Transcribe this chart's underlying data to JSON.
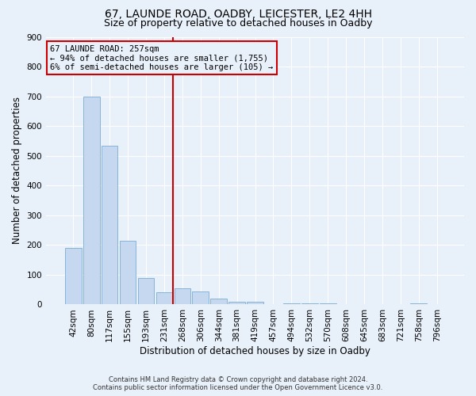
{
  "title": "67, LAUNDE ROAD, OADBY, LEICESTER, LE2 4HH",
  "subtitle": "Size of property relative to detached houses in Oadby",
  "xlabel": "Distribution of detached houses by size in Oadby",
  "ylabel": "Number of detached properties",
  "footer_line1": "Contains HM Land Registry data © Crown copyright and database right 2024.",
  "footer_line2": "Contains public sector information licensed under the Open Government Licence v3.0.",
  "bar_labels": [
    "42sqm",
    "80sqm",
    "117sqm",
    "155sqm",
    "193sqm",
    "231sqm",
    "268sqm",
    "306sqm",
    "344sqm",
    "381sqm",
    "419sqm",
    "457sqm",
    "494sqm",
    "532sqm",
    "570sqm",
    "608sqm",
    "645sqm",
    "683sqm",
    "721sqm",
    "758sqm",
    "796sqm"
  ],
  "bar_values": [
    190,
    700,
    535,
    215,
    90,
    40,
    55,
    45,
    20,
    10,
    10,
    0,
    5,
    3,
    3,
    0,
    0,
    0,
    0,
    5,
    0
  ],
  "bar_color": "#c5d8f0",
  "bar_edge_color": "#7aadd4",
  "annotation_text": "67 LAUNDE ROAD: 257sqm\n← 94% of detached houses are smaller (1,755)\n6% of semi-detached houses are larger (105) →",
  "vline_x": 5.5,
  "vline_color": "#cc0000",
  "annotation_box_color": "#cc0000",
  "ylim": [
    0,
    900
  ],
  "yticks": [
    0,
    100,
    200,
    300,
    400,
    500,
    600,
    700,
    800,
    900
  ],
  "background_color": "#e8f0fa",
  "grid_color": "#ffffff",
  "title_fontsize": 10,
  "subtitle_fontsize": 9,
  "axis_label_fontsize": 8.5,
  "tick_fontsize": 7.5,
  "annotation_fontsize": 7.5,
  "footer_fontsize": 6.0
}
